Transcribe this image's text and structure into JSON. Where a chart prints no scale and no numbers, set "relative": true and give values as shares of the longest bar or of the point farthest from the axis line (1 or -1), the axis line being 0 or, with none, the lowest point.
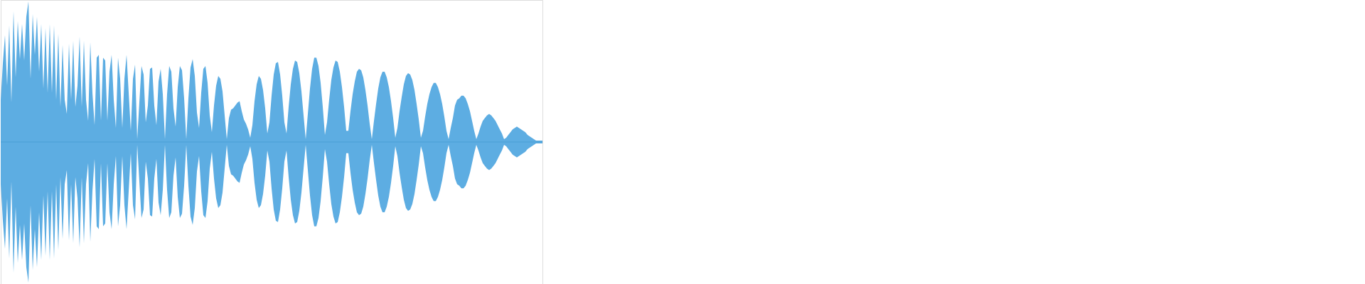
{
  "chart_data": {
    "type": "area",
    "relative": true,
    "categories": [
      null,
      null,
      null,
      null,
      null,
      null,
      null,
      null,
      null,
      null,
      null,
      null,
      null,
      null,
      null,
      null,
      null,
      null,
      null,
      null,
      null,
      null,
      null,
      null,
      null,
      null,
      null,
      null,
      null,
      null,
      null,
      null,
      null,
      null,
      null,
      null,
      null,
      null,
      null,
      null,
      null,
      null,
      null,
      null,
      null,
      null,
      null,
      null,
      null,
      null,
      null,
      null,
      null,
      null,
      null,
      null,
      null,
      null,
      null,
      null,
      null,
      null,
      null,
      null,
      null,
      null,
      null,
      null,
      null,
      null,
      null,
      null,
      null,
      null,
      null,
      null,
      null,
      null,
      null,
      null,
      null,
      null,
      null,
      null,
      null,
      null,
      null,
      null,
      null,
      null,
      null,
      null,
      null,
      null,
      null,
      null,
      null,
      null,
      null,
      null,
      null,
      null,
      null,
      null,
      null,
      null,
      null,
      null,
      null,
      null,
      null,
      null,
      null,
      null,
      null,
      null,
      null,
      null,
      null,
      null,
      null,
      null,
      null,
      null,
      null,
      null,
      null,
      null,
      null,
      null,
      null,
      null,
      null,
      null,
      null,
      null,
      null,
      null,
      null,
      null,
      null,
      null,
      null,
      null,
      null,
      null,
      null,
      null,
      null,
      null,
      null,
      null,
      null,
      null,
      null,
      null,
      null,
      null,
      null,
      null,
      null,
      null,
      null,
      null,
      null,
      null,
      null,
      null,
      null,
      null,
      null,
      null,
      null,
      null,
      null,
      null,
      null,
      null,
      null,
      null,
      null,
      null,
      null,
      null,
      null,
      null,
      null,
      null,
      null,
      null,
      null,
      null,
      null,
      null,
      null,
      null,
      null,
      null,
      null,
      null,
      null,
      null,
      null,
      null,
      null,
      null,
      null,
      null,
      null,
      null,
      null,
      null,
      null,
      null,
      null,
      null,
      null,
      null,
      null,
      null,
      null,
      null,
      null,
      null,
      null,
      null,
      null,
      null,
      null,
      null,
      null,
      null,
      null,
      null,
      null,
      null,
      null,
      null,
      null,
      null,
      null,
      null,
      null,
      null,
      null,
      null,
      null,
      null,
      null,
      null,
      null,
      null,
      null,
      null,
      null
    ],
    "series": [
      {
        "color": "#5dade2",
        "values": [
          0.3,
          0.56,
          0.76,
          0.4,
          0.83,
          0.28,
          0.93,
          0.46,
          0.86,
          0.59,
          0.84,
          0.58,
          0.89,
          1.0,
          0.45,
          0.91,
          0.62,
          0.89,
          0.5,
          0.84,
          0.38,
          0.81,
          0.35,
          0.84,
          0.35,
          0.83,
          0.3,
          0.77,
          0.25,
          0.69,
          0.3,
          0.2,
          0.7,
          0.3,
          0.72,
          0.25,
          0.4,
          0.75,
          0.25,
          0.72,
          0.3,
          0.15,
          0.71,
          0.35,
          0.12,
          0.6,
          0.62,
          0.15,
          0.6,
          0.58,
          0.15,
          0.5,
          0.62,
          0.3,
          0.1,
          0.6,
          0.45,
          0.1,
          0.45,
          0.62,
          0.35,
          0.08,
          0.45,
          0.55,
          0.02,
          0.28,
          0.54,
          0.48,
          0.14,
          0.26,
          0.52,
          0.53,
          0.26,
          0.12,
          0.43,
          0.52,
          0.34,
          0.02,
          0.34,
          0.54,
          0.5,
          0.24,
          0.11,
          0.39,
          0.54,
          0.51,
          0.31,
          0.02,
          0.31,
          0.53,
          0.59,
          0.47,
          0.21,
          0.1,
          0.35,
          0.52,
          0.54,
          0.42,
          0.19,
          0.07,
          0.26,
          0.4,
          0.47,
          0.45,
          0.36,
          0.19,
          0.02,
          0.17,
          0.23,
          0.24,
          0.26,
          0.28,
          0.29,
          0.22,
          0.16,
          0.13,
          0.09,
          0.03,
          0.12,
          0.29,
          0.41,
          0.47,
          0.45,
          0.37,
          0.24,
          0.06,
          0.14,
          0.33,
          0.48,
          0.56,
          0.57,
          0.48,
          0.33,
          0.14,
          0.06,
          0.25,
          0.41,
          0.52,
          0.58,
          0.57,
          0.49,
          0.36,
          0.19,
          0.02,
          0.2,
          0.38,
          0.52,
          0.6,
          0.6,
          0.54,
          0.42,
          0.25,
          0.05,
          0.14,
          0.3,
          0.44,
          0.53,
          0.58,
          0.57,
          0.5,
          0.39,
          0.25,
          0.08,
          0.08,
          0.22,
          0.34,
          0.43,
          0.5,
          0.52,
          0.51,
          0.46,
          0.37,
          0.26,
          0.13,
          0.02,
          0.15,
          0.27,
          0.38,
          0.46,
          0.5,
          0.5,
          0.46,
          0.39,
          0.29,
          0.17,
          0.03,
          0.1,
          0.22,
          0.32,
          0.41,
          0.47,
          0.49,
          0.48,
          0.44,
          0.37,
          0.27,
          0.16,
          0.03,
          0.08,
          0.18,
          0.27,
          0.34,
          0.39,
          0.42,
          0.42,
          0.39,
          0.34,
          0.27,
          0.18,
          0.08,
          0.02,
          0.1,
          0.17,
          0.26,
          0.3,
          0.31,
          0.33,
          0.33,
          0.31,
          0.27,
          0.22,
          0.15,
          0.08,
          0.02,
          0.06,
          0.11,
          0.15,
          0.17,
          0.19,
          0.2,
          0.19,
          0.17,
          0.15,
          0.12,
          0.09,
          0.06,
          0.02,
          0.03,
          0.05,
          0.07,
          0.09,
          0.1,
          0.11,
          0.1,
          0.09,
          0.08,
          0.07,
          0.05,
          0.04,
          0.03,
          0.02,
          0.01,
          0.01,
          0.01,
          0.01
        ]
      },
      {
        "color": "#5dade2",
        "values": [
          -0.3,
          -0.56,
          -0.76,
          -0.4,
          -0.83,
          -0.28,
          -0.93,
          -0.46,
          -0.86,
          -0.59,
          -0.84,
          -0.58,
          -0.89,
          -1.0,
          -0.45,
          -0.91,
          -0.62,
          -0.89,
          -0.5,
          -0.84,
          -0.38,
          -0.81,
          -0.35,
          -0.84,
          -0.35,
          -0.83,
          -0.3,
          -0.77,
          -0.25,
          -0.69,
          -0.3,
          -0.2,
          -0.7,
          -0.3,
          -0.72,
          -0.25,
          -0.4,
          -0.75,
          -0.25,
          -0.72,
          -0.3,
          -0.15,
          -0.71,
          -0.35,
          -0.12,
          -0.6,
          -0.62,
          -0.15,
          -0.6,
          -0.58,
          -0.15,
          -0.5,
          -0.62,
          -0.3,
          -0.1,
          -0.6,
          -0.45,
          -0.1,
          -0.45,
          -0.62,
          -0.35,
          -0.08,
          -0.45,
          -0.55,
          -0.02,
          -0.28,
          -0.54,
          -0.48,
          -0.14,
          -0.26,
          -0.52,
          -0.53,
          -0.26,
          -0.12,
          -0.43,
          -0.52,
          -0.34,
          -0.02,
          -0.34,
          -0.54,
          -0.5,
          -0.24,
          -0.11,
          -0.39,
          -0.54,
          -0.51,
          -0.31,
          -0.02,
          -0.31,
          -0.53,
          -0.59,
          -0.47,
          -0.21,
          -0.1,
          -0.35,
          -0.52,
          -0.54,
          -0.42,
          -0.19,
          -0.07,
          -0.26,
          -0.4,
          -0.47,
          -0.45,
          -0.36,
          -0.19,
          -0.02,
          -0.17,
          -0.23,
          -0.24,
          -0.26,
          -0.28,
          -0.29,
          -0.22,
          -0.16,
          -0.13,
          -0.09,
          -0.03,
          -0.12,
          -0.29,
          -0.41,
          -0.47,
          -0.45,
          -0.37,
          -0.24,
          -0.06,
          -0.14,
          -0.33,
          -0.48,
          -0.56,
          -0.57,
          -0.48,
          -0.33,
          -0.14,
          -0.06,
          -0.25,
          -0.41,
          -0.52,
          -0.58,
          -0.57,
          -0.49,
          -0.36,
          -0.19,
          -0.02,
          -0.2,
          -0.38,
          -0.52,
          -0.6,
          -0.6,
          -0.54,
          -0.42,
          -0.25,
          -0.05,
          -0.14,
          -0.3,
          -0.44,
          -0.53,
          -0.58,
          -0.57,
          -0.5,
          -0.39,
          -0.25,
          -0.08,
          -0.08,
          -0.22,
          -0.34,
          -0.43,
          -0.5,
          -0.52,
          -0.51,
          -0.46,
          -0.37,
          -0.26,
          -0.13,
          -0.02,
          -0.15,
          -0.27,
          -0.38,
          -0.46,
          -0.5,
          -0.5,
          -0.46,
          -0.39,
          -0.29,
          -0.17,
          -0.03,
          -0.1,
          -0.22,
          -0.32,
          -0.41,
          -0.47,
          -0.49,
          -0.48,
          -0.44,
          -0.37,
          -0.27,
          -0.16,
          -0.03,
          -0.08,
          -0.18,
          -0.27,
          -0.34,
          -0.39,
          -0.42,
          -0.42,
          -0.39,
          -0.34,
          -0.27,
          -0.18,
          -0.08,
          -0.02,
          -0.1,
          -0.17,
          -0.26,
          -0.3,
          -0.31,
          -0.33,
          -0.33,
          -0.31,
          -0.27,
          -0.22,
          -0.15,
          -0.08,
          -0.02,
          -0.06,
          -0.11,
          -0.15,
          -0.17,
          -0.19,
          -0.2,
          -0.19,
          -0.17,
          -0.15,
          -0.12,
          -0.09,
          -0.06,
          -0.02,
          -0.03,
          -0.05,
          -0.07,
          -0.09,
          -0.1,
          -0.11,
          -0.1,
          -0.09,
          -0.08,
          -0.07,
          -0.05,
          -0.04,
          -0.03,
          -0.02,
          -0.01,
          -0.01,
          -0.01,
          -0.01
        ]
      }
    ],
    "ref_lines": [
      {
        "axis": "y",
        "value": 0,
        "color": "#4a9ed5"
      }
    ]
  }
}
